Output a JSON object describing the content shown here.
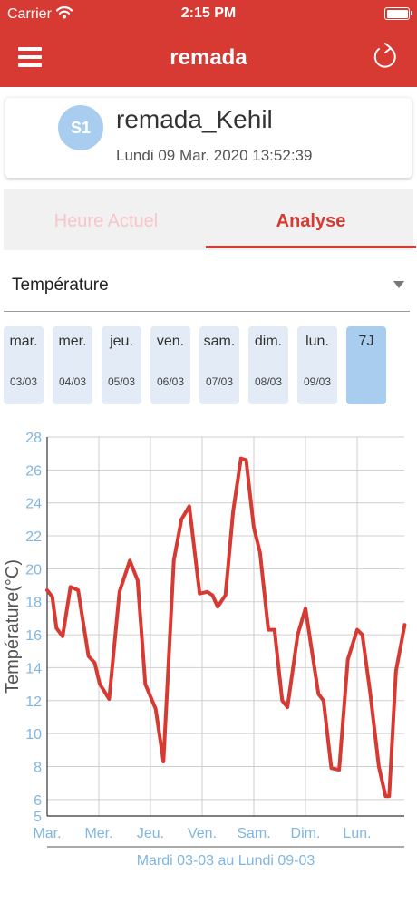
{
  "status_bar": {
    "carrier": "Carrier",
    "time": "2:15 PM"
  },
  "header": {
    "title": "remada"
  },
  "device": {
    "badge": "S1",
    "name": "remada_Kehil",
    "datetime": "Lundi 09 Mar.  2020 13:52:39"
  },
  "tabs": [
    {
      "label": "Heure Actuel",
      "active": false
    },
    {
      "label": "Analyse",
      "active": true
    }
  ],
  "measure_select": {
    "value": "Température"
  },
  "days": [
    {
      "name": "mar.",
      "date": "03/03"
    },
    {
      "name": "mer.",
      "date": "04/03"
    },
    {
      "name": "jeu.",
      "date": "05/03"
    },
    {
      "name": "ven.",
      "date": "06/03"
    },
    {
      "name": "sam.",
      "date": "07/03"
    },
    {
      "name": "dim.",
      "date": "08/03"
    },
    {
      "name": "lun.",
      "date": "09/03"
    },
    {
      "name": "7J",
      "date": "",
      "selected": true
    }
  ],
  "colors": {
    "brand": "#d63a33",
    "line": "#d63a33",
    "axis_text": "#7fb6e3",
    "day_chip": "#e3ecf6",
    "day_chip_selected": "#a9cdee"
  },
  "chart_data": {
    "type": "line",
    "ylabel": "Température(°C)",
    "xlabel": "Mardi 03-03   au  Lundi 09-03",
    "x_ticks": [
      "Mar.",
      "Mer.",
      "Jeu.",
      "Ven.",
      "Sam.",
      "Dim.",
      "Lun."
    ],
    "y_ticks": [
      5,
      6,
      8,
      10,
      12,
      14,
      16,
      18,
      20,
      22,
      24,
      26,
      28
    ],
    "ylim": [
      5,
      28
    ],
    "xlim": [
      0,
      7
    ],
    "grid": true,
    "series": [
      {
        "points": [
          [
            0,
            18.7
          ],
          [
            0.1,
            18.3
          ],
          [
            0.18,
            16.4
          ],
          [
            0.3,
            15.9
          ],
          [
            0.45,
            18.9
          ],
          [
            0.6,
            18.7
          ],
          [
            0.8,
            14.7
          ],
          [
            0.92,
            14.3
          ],
          [
            1.02,
            13.0
          ],
          [
            1.2,
            12.1
          ],
          [
            1.4,
            18.6
          ],
          [
            1.6,
            20.5
          ],
          [
            1.75,
            19.3
          ],
          [
            1.9,
            13.0
          ],
          [
            2.1,
            11.5
          ],
          [
            2.25,
            8.3
          ],
          [
            2.45,
            20.5
          ],
          [
            2.6,
            23.0
          ],
          [
            2.75,
            23.8
          ],
          [
            2.95,
            18.5
          ],
          [
            3.1,
            18.6
          ],
          [
            3.2,
            18.4
          ],
          [
            3.3,
            17.7
          ],
          [
            3.45,
            18.4
          ],
          [
            3.6,
            23.5
          ],
          [
            3.75,
            26.7
          ],
          [
            3.85,
            26.6
          ],
          [
            4.0,
            22.5
          ],
          [
            4.12,
            21.0
          ],
          [
            4.28,
            16.3
          ],
          [
            4.4,
            16.3
          ],
          [
            4.55,
            12.0
          ],
          [
            4.65,
            11.6
          ],
          [
            4.85,
            16.0
          ],
          [
            5.0,
            17.6
          ],
          [
            5.1,
            15.5
          ],
          [
            5.25,
            12.4
          ],
          [
            5.35,
            12.0
          ],
          [
            5.5,
            7.9
          ],
          [
            5.65,
            7.8
          ],
          [
            5.82,
            14.5
          ],
          [
            6.0,
            16.3
          ],
          [
            6.1,
            16.0
          ],
          [
            6.25,
            12.5
          ],
          [
            6.42,
            8.0
          ],
          [
            6.55,
            6.2
          ],
          [
            6.62,
            6.2
          ],
          [
            6.75,
            13.8
          ],
          [
            6.92,
            16.6
          ]
        ]
      }
    ]
  }
}
